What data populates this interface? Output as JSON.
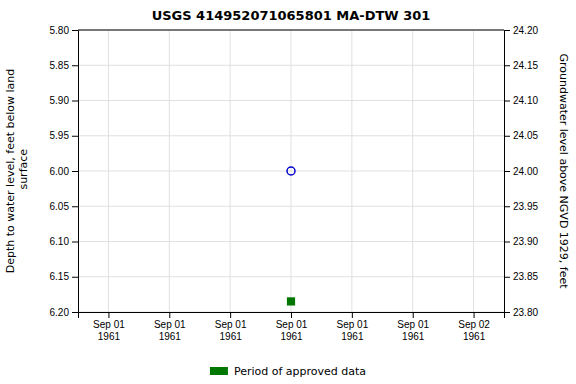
{
  "chart_data": {
    "type": "scatter",
    "title": "USGS 414952071065801 MA-DTW  301",
    "y_label": "Depth to water level, feet below land\n surface",
    "y2_label": "Groundwater level above NGVD 1929, feet",
    "categories": [
      "Sep 01\n1961",
      "Sep 01\n1961",
      "Sep 01\n1961",
      "Sep 01\n1961",
      "Sep 01\n1961",
      "Sep 01\n1961",
      "Sep 02\n1961"
    ],
    "series": [
      {
        "color": "#0000cc",
        "marker": "circle-open",
        "values": [
          null,
          null,
          null,
          6.0,
          null,
          null,
          null
        ]
      },
      {
        "name": "Period of approved data",
        "color": "#007700",
        "marker": "square",
        "values": [
          null,
          null,
          null,
          6.185,
          null,
          null,
          null
        ]
      }
    ],
    "ylim": [
      6.2,
      5.8
    ],
    "yticks": [
      {
        "value": 5.8,
        "label": "5.80"
      },
      {
        "value": 5.85,
        "label": "5.85"
      },
      {
        "value": 5.9,
        "label": "5.90"
      },
      {
        "value": 5.95,
        "label": "5.95"
      },
      {
        "value": 6.0,
        "label": "6.00"
      },
      {
        "value": 6.05,
        "label": "6.05"
      },
      {
        "value": 6.1,
        "label": "6.10"
      },
      {
        "value": 6.15,
        "label": "6.15"
      },
      {
        "value": 6.2,
        "label": "6.20"
      }
    ],
    "y2lim": [
      23.8,
      24.2
    ],
    "y2ticks": [
      {
        "value": 24.2,
        "label": "24.20"
      },
      {
        "value": 24.15,
        "label": "24.15"
      },
      {
        "value": 24.1,
        "label": "24.10"
      },
      {
        "value": 24.05,
        "label": "24.05"
      },
      {
        "value": 24.0,
        "label": "24.00"
      },
      {
        "value": 23.95,
        "label": "23.95"
      },
      {
        "value": 23.9,
        "label": "23.90"
      },
      {
        "value": 23.85,
        "label": "23.85"
      },
      {
        "value": 23.8,
        "label": "23.80"
      }
    ],
    "grid": true,
    "legend": "bottom"
  }
}
